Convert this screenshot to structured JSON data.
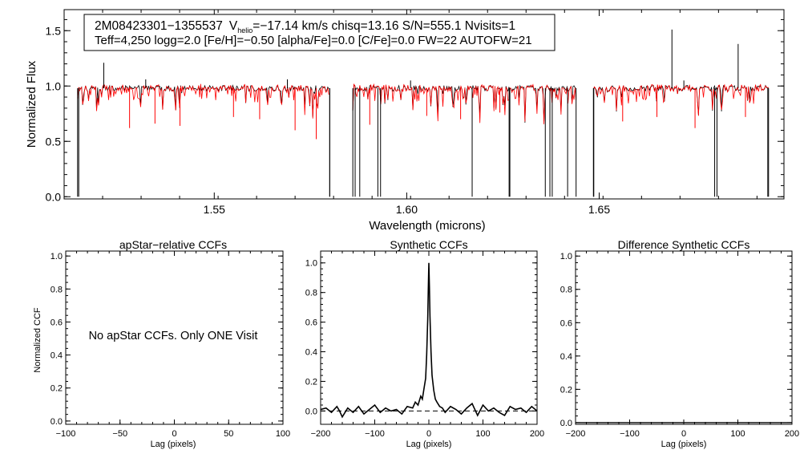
{
  "chart_data": [
    {
      "type": "line",
      "xlabel": "Wavelength (microns)",
      "ylabel": "Normalized Flux",
      "xlim": [
        1.511,
        1.698
      ],
      "ylim": [
        -0.02,
        1.69
      ],
      "xticks": [
        1.55,
        1.6,
        1.65
      ],
      "xtick_labels": [
        "1.55",
        "1.60",
        "1.65"
      ],
      "yticks": [
        0.0,
        0.5,
        1.0,
        1.5
      ],
      "ytick_labels": [
        "0.0",
        "0.5",
        "1.0",
        "1.5"
      ],
      "annotation": {
        "line1_id": "2M08423301−1355537",
        "line1_v": "V",
        "line1_sub": "helio",
        "line1_rest": "=−17.14 km/s  chisq=13.16  S/N=555.1  Nvisits=1",
        "line2": "Teff=4,250 logg=2.0 [Fe/H]=−0.50 [alpha/Fe]=0.0 [C/Fe]=0.0 FW=22 AUTOFW=21"
      },
      "chips": [
        [
          1.5145,
          1.58
        ],
        [
          1.586,
          1.644
        ],
        [
          1.6485,
          1.694
        ]
      ],
      "continuum": 0.98,
      "series": [
        {
          "color": "#000000"
        },
        {
          "color": "#ff0000"
        }
      ],
      "emission_spikes": [
        [
          1.5213,
          1.21
        ],
        [
          1.5322,
          1.06
        ],
        [
          1.569,
          1.06
        ],
        [
          1.601,
          1.05
        ],
        [
          1.6689,
          1.51
        ],
        [
          1.672,
          1.05
        ],
        [
          1.6861,
          1.38
        ]
      ],
      "deep_drops": [
        1.5148,
        1.58,
        1.5866,
        1.5878,
        1.5925,
        1.5932,
        1.617,
        1.6266,
        1.6268,
        1.636,
        1.6372,
        1.6378,
        1.6418,
        1.6486,
        1.68,
        1.6806,
        1.6938
      ],
      "red_absorptions": [
        [
          1.528,
          0.62
        ],
        [
          1.5346,
          0.66
        ],
        [
          1.5411,
          0.64
        ],
        [
          1.555,
          0.72
        ],
        [
          1.5618,
          0.7
        ],
        [
          1.571,
          0.6
        ],
        [
          1.5765,
          0.52
        ],
        [
          1.5904,
          0.65
        ],
        [
          1.6052,
          0.73
        ],
        [
          1.614,
          0.7
        ],
        [
          1.6242,
          0.76
        ],
        [
          1.6561,
          0.68
        ],
        [
          1.665,
          0.72
        ],
        [
          1.6749,
          0.62
        ],
        [
          1.688,
          0.72
        ]
      ]
    },
    {
      "type": "line",
      "title": "apStar−relative CCFs",
      "xlabel": "Lag (pixels)",
      "ylabel": "Normalized CCF",
      "xlim": [
        -100,
        100
      ],
      "ylim": [
        -0.02,
        1.03
      ],
      "xticks": [
        -100,
        -50,
        0,
        50,
        100
      ],
      "xtick_labels": [
        "−100",
        "−50",
        "0",
        "50",
        "100"
      ],
      "yticks": [
        0.0,
        0.2,
        0.4,
        0.6,
        0.8,
        1.0
      ],
      "ytick_labels": [
        "0.0",
        "0.2",
        "0.4",
        "0.6",
        "0.8",
        "1.0"
      ],
      "message": "No apStar CCFs.  Only ONE Visit"
    },
    {
      "type": "line",
      "title": "Synthetic CCFs",
      "xlabel": "Lag (pixels)",
      "xlim": [
        -200,
        200
      ],
      "ylim": [
        -0.09,
        1.08
      ],
      "xticks": [
        -200,
        -100,
        0,
        100,
        200
      ],
      "xtick_labels": [
        "−200",
        "−100",
        "0",
        "100",
        "200"
      ],
      "yticks": [
        0.0,
        0.2,
        0.4,
        0.6,
        0.8,
        1.0
      ],
      "ytick_labels": [
        "0.0",
        "0.2",
        "0.4",
        "0.6",
        "0.8",
        "1.0"
      ],
      "baseline": 0.0,
      "peak": {
        "x": 0,
        "y": 1.0
      },
      "ccf_x": [
        -200,
        -190,
        -180,
        -170,
        -165,
        -160,
        -150,
        -140,
        -130,
        -120,
        -110,
        -100,
        -90,
        -80,
        -70,
        -60,
        -50,
        -40,
        -30,
        -25,
        -20,
        -15,
        -12,
        -9,
        -6,
        -4,
        -2,
        -1,
        0,
        1,
        2,
        4,
        6,
        9,
        12,
        15,
        20,
        25,
        30,
        40,
        50,
        60,
        70,
        80,
        90,
        100,
        110,
        120,
        130,
        140,
        150,
        160,
        170,
        180,
        190,
        200
      ],
      "ccf_y": [
        0.01,
        0.02,
        -0.01,
        0.03,
        0.0,
        -0.04,
        0.02,
        -0.01,
        0.03,
        -0.02,
        0.01,
        0.04,
        -0.01,
        0.02,
        0.0,
        0.01,
        -0.02,
        0.03,
        0.02,
        0.06,
        0.04,
        0.1,
        0.08,
        0.15,
        0.22,
        0.38,
        0.62,
        0.82,
        1.0,
        0.84,
        0.64,
        0.4,
        0.24,
        0.14,
        0.08,
        0.06,
        0.03,
        0.02,
        -0.01,
        0.03,
        0.01,
        -0.02,
        0.02,
        0.05,
        -0.03,
        0.04,
        0.0,
        0.02,
        -0.01,
        -0.03,
        0.03,
        0.01,
        0.02,
        -0.01,
        0.03,
        0.0
      ]
    },
    {
      "type": "line",
      "title": "Difference Synthetic CCFs",
      "xlabel": "Lag (pixels)",
      "xlim": [
        -200,
        200
      ],
      "ylim": [
        -0.01,
        1.03
      ],
      "xticks": [
        -200,
        -100,
        0,
        100,
        200
      ],
      "xtick_labels": [
        "−200",
        "−100",
        "0",
        "100",
        "200"
      ],
      "yticks": [
        0.0,
        0.2,
        0.4,
        0.6,
        0.8,
        1.0
      ],
      "ytick_labels": [
        "0.0",
        "0.2",
        "0.4",
        "0.6",
        "0.8",
        "1.0"
      ],
      "baseline": 0.0
    }
  ]
}
